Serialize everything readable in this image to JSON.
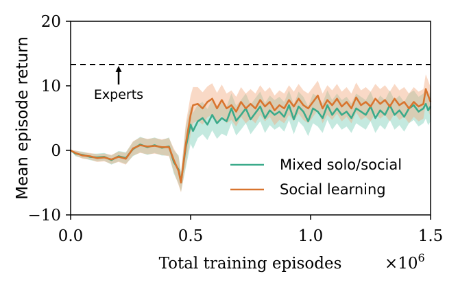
{
  "chart_data": {
    "type": "line",
    "xlabel": "Total training episodes",
    "x_multiplier_label": "×10",
    "x_multiplier_exponent": "6",
    "ylabel": "Mean episode return",
    "xlim": [
      0.0,
      1.5
    ],
    "ylim": [
      -10,
      20
    ],
    "x_ticks": [
      0.0,
      0.5,
      1.0,
      1.5
    ],
    "x_tick_labels": [
      "0.0",
      "0.5",
      "1.0",
      "1.5"
    ],
    "y_ticks": [
      -10,
      0,
      10,
      20
    ],
    "y_tick_labels": [
      "−10",
      "0",
      "10",
      "20"
    ],
    "grid": false,
    "legend_position": "lower-right",
    "reference_line": {
      "y": 13.3,
      "style": "dashed",
      "color": "#000000"
    },
    "annotation": {
      "text": "Experts",
      "arrow_x": 0.2,
      "arrow_tip_y": 13.1,
      "arrow_tail_y": 10.2
    },
    "series": [
      {
        "name": "Mixed solo/social",
        "color": "#3aaa8a",
        "band_color": "#7ccfb7",
        "points": [
          [
            0.0,
            0.0,
            0.0
          ],
          [
            0.02,
            -0.5,
            0.4
          ],
          [
            0.05,
            -0.7,
            0.5
          ],
          [
            0.08,
            -1.0,
            0.5
          ],
          [
            0.11,
            -1.1,
            0.6
          ],
          [
            0.14,
            -1.0,
            0.6
          ],
          [
            0.17,
            -1.5,
            0.7
          ],
          [
            0.2,
            -0.9,
            0.8
          ],
          [
            0.23,
            -1.2,
            0.9
          ],
          [
            0.26,
            0.2,
            1.1
          ],
          [
            0.29,
            0.9,
            1.2
          ],
          [
            0.32,
            0.5,
            1.2
          ],
          [
            0.35,
            0.8,
            1.2
          ],
          [
            0.38,
            0.4,
            1.2
          ],
          [
            0.41,
            0.6,
            1.4
          ],
          [
            0.43,
            -1.8,
            1.8
          ],
          [
            0.45,
            -3.0,
            2.2
          ],
          [
            0.46,
            -4.9,
            1.5
          ],
          [
            0.48,
            0.5,
            3.2
          ],
          [
            0.5,
            4.0,
            3.0
          ],
          [
            0.51,
            3.0,
            2.8
          ],
          [
            0.53,
            4.5,
            2.6
          ],
          [
            0.55,
            5.0,
            2.5
          ],
          [
            0.57,
            4.0,
            2.4
          ],
          [
            0.59,
            5.5,
            2.4
          ],
          [
            0.61,
            4.2,
            2.4
          ],
          [
            0.63,
            5.0,
            2.4
          ],
          [
            0.65,
            4.5,
            2.3
          ],
          [
            0.67,
            6.5,
            2.3
          ],
          [
            0.69,
            4.6,
            2.3
          ],
          [
            0.71,
            5.5,
            2.3
          ],
          [
            0.73,
            6.5,
            2.3
          ],
          [
            0.75,
            4.8,
            2.3
          ],
          [
            0.77,
            5.8,
            2.3
          ],
          [
            0.79,
            6.8,
            2.3
          ],
          [
            0.81,
            5.0,
            2.3
          ],
          [
            0.83,
            6.2,
            2.3
          ],
          [
            0.85,
            5.5,
            2.3
          ],
          [
            0.87,
            6.0,
            2.3
          ],
          [
            0.89,
            5.2,
            2.3
          ],
          [
            0.91,
            7.0,
            2.3
          ],
          [
            0.93,
            4.8,
            2.3
          ],
          [
            0.95,
            6.8,
            2.3
          ],
          [
            0.97,
            6.0,
            2.3
          ],
          [
            0.99,
            4.5,
            2.3
          ],
          [
            1.01,
            6.5,
            2.3
          ],
          [
            1.03,
            6.0,
            2.3
          ],
          [
            1.05,
            5.0,
            2.3
          ],
          [
            1.07,
            7.0,
            2.3
          ],
          [
            1.09,
            5.5,
            2.3
          ],
          [
            1.11,
            6.5,
            2.3
          ],
          [
            1.13,
            5.5,
            2.3
          ],
          [
            1.15,
            6.0,
            2.3
          ],
          [
            1.17,
            5.0,
            2.3
          ],
          [
            1.19,
            6.5,
            2.3
          ],
          [
            1.21,
            6.0,
            2.3
          ],
          [
            1.23,
            5.5,
            2.3
          ],
          [
            1.25,
            6.8,
            2.3
          ],
          [
            1.27,
            5.0,
            2.3
          ],
          [
            1.29,
            6.2,
            2.3
          ],
          [
            1.31,
            5.5,
            2.3
          ],
          [
            1.33,
            7.0,
            2.3
          ],
          [
            1.35,
            5.5,
            2.3
          ],
          [
            1.37,
            6.2,
            2.3
          ],
          [
            1.39,
            5.2,
            2.3
          ],
          [
            1.41,
            6.5,
            2.3
          ],
          [
            1.43,
            7.0,
            2.3
          ],
          [
            1.45,
            6.0,
            2.3
          ],
          [
            1.47,
            6.5,
            2.3
          ],
          [
            1.48,
            7.2,
            2.3
          ],
          [
            1.49,
            6.2,
            2.3
          ],
          [
            1.5,
            6.8,
            2.3
          ]
        ]
      },
      {
        "name": "Social learning",
        "color": "#d8742e",
        "band_color": "#f2aa80",
        "points": [
          [
            0.0,
            0.0,
            0.0
          ],
          [
            0.02,
            -0.4,
            0.4
          ],
          [
            0.05,
            -0.8,
            0.5
          ],
          [
            0.08,
            -0.9,
            0.5
          ],
          [
            0.11,
            -1.2,
            0.6
          ],
          [
            0.14,
            -1.1,
            0.6
          ],
          [
            0.17,
            -1.4,
            0.7
          ],
          [
            0.2,
            -1.0,
            0.8
          ],
          [
            0.23,
            -1.3,
            0.9
          ],
          [
            0.26,
            0.3,
            1.1
          ],
          [
            0.29,
            0.8,
            1.2
          ],
          [
            0.32,
            0.6,
            1.2
          ],
          [
            0.35,
            0.7,
            1.2
          ],
          [
            0.38,
            0.5,
            1.2
          ],
          [
            0.41,
            0.5,
            1.4
          ],
          [
            0.43,
            -1.5,
            1.8
          ],
          [
            0.45,
            -3.2,
            2.2
          ],
          [
            0.46,
            -5.0,
            1.5
          ],
          [
            0.48,
            1.0,
            3.2
          ],
          [
            0.5,
            5.5,
            3.0
          ],
          [
            0.51,
            7.0,
            2.8
          ],
          [
            0.53,
            7.2,
            2.6
          ],
          [
            0.55,
            6.5,
            2.5
          ],
          [
            0.57,
            7.5,
            2.4
          ],
          [
            0.59,
            8.0,
            2.4
          ],
          [
            0.61,
            6.5,
            2.4
          ],
          [
            0.63,
            7.8,
            2.4
          ],
          [
            0.65,
            6.5,
            2.3
          ],
          [
            0.67,
            7.0,
            2.3
          ],
          [
            0.69,
            6.0,
            2.3
          ],
          [
            0.71,
            7.5,
            2.3
          ],
          [
            0.73,
            6.5,
            2.3
          ],
          [
            0.75,
            7.2,
            2.3
          ],
          [
            0.77,
            6.5,
            2.3
          ],
          [
            0.79,
            7.8,
            2.3
          ],
          [
            0.81,
            6.8,
            2.3
          ],
          [
            0.83,
            7.5,
            2.3
          ],
          [
            0.85,
            6.2,
            2.3
          ],
          [
            0.87,
            7.0,
            2.3
          ],
          [
            0.89,
            6.5,
            2.3
          ],
          [
            0.91,
            7.8,
            2.3
          ],
          [
            0.93,
            6.8,
            2.3
          ],
          [
            0.95,
            8.0,
            2.3
          ],
          [
            0.97,
            7.0,
            2.3
          ],
          [
            0.99,
            6.5,
            2.3
          ],
          [
            1.01,
            7.5,
            2.3
          ],
          [
            1.03,
            8.5,
            2.3
          ],
          [
            1.05,
            6.5,
            2.3
          ],
          [
            1.07,
            7.8,
            2.3
          ],
          [
            1.09,
            7.0,
            2.3
          ],
          [
            1.11,
            8.0,
            2.3
          ],
          [
            1.13,
            6.8,
            2.3
          ],
          [
            1.15,
            7.5,
            2.3
          ],
          [
            1.17,
            6.5,
            2.3
          ],
          [
            1.19,
            8.2,
            2.3
          ],
          [
            1.21,
            7.0,
            2.3
          ],
          [
            1.23,
            7.5,
            2.3
          ],
          [
            1.25,
            6.8,
            2.3
          ],
          [
            1.27,
            8.0,
            2.3
          ],
          [
            1.29,
            7.2,
            2.3
          ],
          [
            1.31,
            7.8,
            2.3
          ],
          [
            1.33,
            6.8,
            2.3
          ],
          [
            1.35,
            8.0,
            2.3
          ],
          [
            1.37,
            7.0,
            2.3
          ],
          [
            1.39,
            7.5,
            2.3
          ],
          [
            1.41,
            6.5,
            2.3
          ],
          [
            1.43,
            7.5,
            2.3
          ],
          [
            1.45,
            6.8,
            2.3
          ],
          [
            1.47,
            7.2,
            2.3
          ],
          [
            1.48,
            9.5,
            2.3
          ],
          [
            1.49,
            8.5,
            2.3
          ],
          [
            1.5,
            7.5,
            2.3
          ]
        ]
      }
    ]
  }
}
